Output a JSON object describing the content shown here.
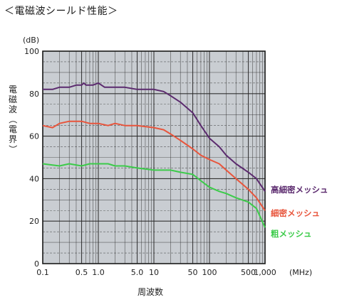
{
  "page": {
    "title": "＜電磁波シールド性能＞"
  },
  "chart_data": {
    "type": "line",
    "title": "＜電磁波シールド性能＞",
    "xlabel": "周波数",
    "ylabel": "電磁波（電界）",
    "x_unit": "(MHz)",
    "y_unit": "(dB)",
    "x_scale": "log",
    "xlim": [
      0.1,
      1000
    ],
    "ylim": [
      0,
      100
    ],
    "grid": true,
    "x_ticks": [
      {
        "value": 0.1,
        "label": "0.1"
      },
      {
        "value": 0.5,
        "label": "0.5"
      },
      {
        "value": 1,
        "label": "1.0"
      },
      {
        "value": 5,
        "label": "5.0"
      },
      {
        "value": 10,
        "label": "10"
      },
      {
        "value": 50,
        "label": "50"
      },
      {
        "value": 100,
        "label": "100"
      },
      {
        "value": 500,
        "label": "500"
      },
      {
        "value": 1000,
        "label": "1,000"
      }
    ],
    "y_ticks": [
      {
        "value": 0,
        "label": "0"
      },
      {
        "value": 20,
        "label": "20"
      },
      {
        "value": 40,
        "label": "40"
      },
      {
        "value": 60,
        "label": "60"
      },
      {
        "value": 80,
        "label": "80"
      },
      {
        "value": 100,
        "label": "100"
      }
    ],
    "series": [
      {
        "name": "高細密メッシュ",
        "color": "#5b2a6e",
        "points": [
          [
            0.1,
            82
          ],
          [
            0.15,
            82
          ],
          [
            0.2,
            83
          ],
          [
            0.3,
            83
          ],
          [
            0.4,
            84
          ],
          [
            0.5,
            84
          ],
          [
            0.55,
            85
          ],
          [
            0.6,
            84
          ],
          [
            0.8,
            84
          ],
          [
            1.0,
            85
          ],
          [
            1.3,
            83
          ],
          [
            2,
            83
          ],
          [
            3,
            83
          ],
          [
            5,
            82
          ],
          [
            8,
            82
          ],
          [
            10,
            82
          ],
          [
            15,
            81
          ],
          [
            20,
            79
          ],
          [
            30,
            76
          ],
          [
            50,
            71
          ],
          [
            70,
            65
          ],
          [
            100,
            59
          ],
          [
            150,
            55
          ],
          [
            200,
            51
          ],
          [
            300,
            47
          ],
          [
            500,
            43
          ],
          [
            700,
            40
          ],
          [
            1000,
            34
          ]
        ]
      },
      {
        "name": "細密メッシュ",
        "color": "#e8553c",
        "points": [
          [
            0.1,
            65
          ],
          [
            0.15,
            64
          ],
          [
            0.2,
            66
          ],
          [
            0.3,
            67
          ],
          [
            0.5,
            67
          ],
          [
            0.7,
            66
          ],
          [
            1.0,
            66
          ],
          [
            1.5,
            65
          ],
          [
            2,
            66
          ],
          [
            3,
            65
          ],
          [
            5,
            65
          ],
          [
            10,
            64
          ],
          [
            15,
            63
          ],
          [
            20,
            61
          ],
          [
            30,
            58
          ],
          [
            50,
            54
          ],
          [
            70,
            51
          ],
          [
            100,
            49
          ],
          [
            150,
            47
          ],
          [
            200,
            44
          ],
          [
            300,
            40
          ],
          [
            500,
            35
          ],
          [
            700,
            31
          ],
          [
            1000,
            25
          ]
        ]
      },
      {
        "name": "粗メッシュ",
        "color": "#3ccb4a",
        "points": [
          [
            0.1,
            47
          ],
          [
            0.2,
            46
          ],
          [
            0.3,
            47
          ],
          [
            0.5,
            46
          ],
          [
            0.7,
            47
          ],
          [
            1.0,
            47
          ],
          [
            1.5,
            47
          ],
          [
            2,
            46
          ],
          [
            3,
            46
          ],
          [
            5,
            45
          ],
          [
            10,
            44
          ],
          [
            15,
            44
          ],
          [
            20,
            44
          ],
          [
            30,
            43
          ],
          [
            50,
            42
          ],
          [
            70,
            39
          ],
          [
            100,
            36
          ],
          [
            150,
            34
          ],
          [
            200,
            33
          ],
          [
            300,
            31
          ],
          [
            500,
            29
          ],
          [
            700,
            26
          ],
          [
            1000,
            17
          ]
        ]
      }
    ]
  }
}
